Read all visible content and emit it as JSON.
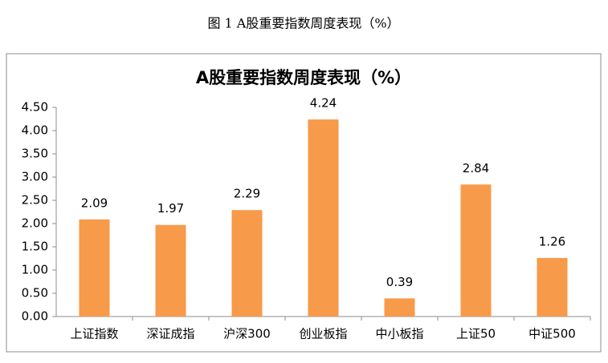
{
  "caption": "图 1 A股重要指数周度表现（%）",
  "chart_data": {
    "type": "bar",
    "title": "A股重要指数周度表现（%）",
    "categories": [
      "上证指数",
      "深证成指",
      "沪深300",
      "创业板指",
      "中小板指",
      "上证50",
      "中证500"
    ],
    "values": [
      2.09,
      1.97,
      2.29,
      4.24,
      0.39,
      2.84,
      1.26
    ],
    "color": "#f79a4a",
    "ylim": [
      0,
      4.5
    ],
    "yticks": [
      {
        "value": 0,
        "label": "0.00"
      },
      {
        "value": 0.5,
        "label": "0.50"
      },
      {
        "value": 1,
        "label": "1.00"
      },
      {
        "value": 1.5,
        "label": "1.50"
      },
      {
        "value": 2,
        "label": "2.00"
      },
      {
        "value": 2.5,
        "label": "2.50"
      },
      {
        "value": 3,
        "label": "3.00"
      },
      {
        "value": 3.5,
        "label": "3.50"
      },
      {
        "value": 4,
        "label": "4.00"
      },
      {
        "value": 4.5,
        "label": "4.50"
      }
    ],
    "grid": false
  }
}
